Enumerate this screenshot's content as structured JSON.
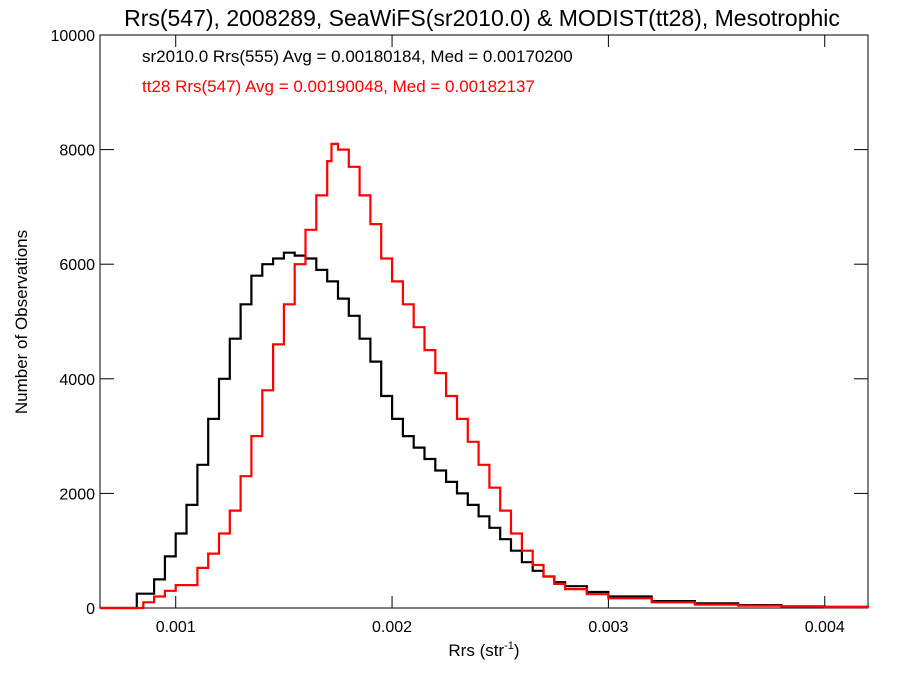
{
  "chart_data": {
    "type": "line",
    "title": "Rrs(547), 2008289, SeaWiFS(sr2010.0) & MODIST(tt28), Mesotrophic",
    "xlabel": "Rrs (str",
    "xlabel_sup": "-1",
    "xlabel_suffix": ")",
    "ylabel": "Number of Observations",
    "xlim": [
      0.00065,
      0.0042
    ],
    "ylim": [
      0,
      10000
    ],
    "x_ticks": [
      0.001,
      0.002,
      0.003,
      0.004
    ],
    "x_tick_labels": [
      "0.001",
      "0.002",
      "0.003",
      "0.004"
    ],
    "y_ticks": [
      0,
      2000,
      4000,
      6000,
      8000,
      10000
    ],
    "y_tick_labels": [
      "0",
      "2000",
      "4000",
      "6000",
      "8000",
      "10000"
    ],
    "grid": false,
    "legend_position": "top-left",
    "annotations": [
      {
        "text": "sr2010.0 Rrs(555) Avg = 0.00180184, Med = 0.00170200",
        "color": "#000000"
      },
      {
        "text": "tt28 Rrs(547) Avg = 0.00190048, Med = 0.00182137",
        "color": "#ff0000"
      }
    ],
    "series": [
      {
        "color": "#000000",
        "points": [
          [
            0.00065,
            0
          ],
          [
            0.00079,
            0
          ],
          [
            0.00082,
            250
          ],
          [
            0.0009,
            500
          ],
          [
            0.00095,
            900
          ],
          [
            0.001,
            1300
          ],
          [
            0.00105,
            1800
          ],
          [
            0.0011,
            2500
          ],
          [
            0.00115,
            3300
          ],
          [
            0.0012,
            4000
          ],
          [
            0.00125,
            4700
          ],
          [
            0.0013,
            5300
          ],
          [
            0.00135,
            5800
          ],
          [
            0.0014,
            6000
          ],
          [
            0.00145,
            6100
          ],
          [
            0.0015,
            6200
          ],
          [
            0.00155,
            6150
          ],
          [
            0.0016,
            6100
          ],
          [
            0.00165,
            5900
          ],
          [
            0.0017,
            5700
          ],
          [
            0.00175,
            5400
          ],
          [
            0.0018,
            5100
          ],
          [
            0.00185,
            4700
          ],
          [
            0.0019,
            4300
          ],
          [
            0.00195,
            3700
          ],
          [
            0.002,
            3300
          ],
          [
            0.00205,
            3000
          ],
          [
            0.0021,
            2800
          ],
          [
            0.00215,
            2600
          ],
          [
            0.0022,
            2400
          ],
          [
            0.00225,
            2200
          ],
          [
            0.0023,
            2000
          ],
          [
            0.00235,
            1800
          ],
          [
            0.0024,
            1600
          ],
          [
            0.00245,
            1400
          ],
          [
            0.0025,
            1200
          ],
          [
            0.00255,
            1000
          ],
          [
            0.0026,
            800
          ],
          [
            0.00265,
            650
          ],
          [
            0.0027,
            550
          ],
          [
            0.00275,
            450
          ],
          [
            0.0028,
            380
          ],
          [
            0.0029,
            280
          ],
          [
            0.003,
            200
          ],
          [
            0.0032,
            120
          ],
          [
            0.0034,
            80
          ],
          [
            0.0036,
            50
          ],
          [
            0.0038,
            30
          ],
          [
            0.004,
            20
          ],
          [
            0.0042,
            15
          ]
        ]
      },
      {
        "color": "#ff0000",
        "points": [
          [
            0.00065,
            0
          ],
          [
            0.0008,
            0
          ],
          [
            0.00085,
            100
          ],
          [
            0.0009,
            200
          ],
          [
            0.00095,
            300
          ],
          [
            0.001,
            400
          ],
          [
            0.0011,
            700
          ],
          [
            0.00115,
            950
          ],
          [
            0.0012,
            1300
          ],
          [
            0.00125,
            1700
          ],
          [
            0.0013,
            2300
          ],
          [
            0.00135,
            3000
          ],
          [
            0.0014,
            3800
          ],
          [
            0.00145,
            4600
          ],
          [
            0.0015,
            5300
          ],
          [
            0.00155,
            6000
          ],
          [
            0.0016,
            6600
          ],
          [
            0.00165,
            7200
          ],
          [
            0.0017,
            7800
          ],
          [
            0.00172,
            8100
          ],
          [
            0.00175,
            8000
          ],
          [
            0.0018,
            7700
          ],
          [
            0.00185,
            7200
          ],
          [
            0.0019,
            6700
          ],
          [
            0.00195,
            6100
          ],
          [
            0.002,
            5700
          ],
          [
            0.00205,
            5300
          ],
          [
            0.0021,
            4900
          ],
          [
            0.00215,
            4500
          ],
          [
            0.0022,
            4100
          ],
          [
            0.00225,
            3700
          ],
          [
            0.0023,
            3300
          ],
          [
            0.00235,
            2900
          ],
          [
            0.0024,
            2500
          ],
          [
            0.00245,
            2100
          ],
          [
            0.0025,
            1700
          ],
          [
            0.00255,
            1300
          ],
          [
            0.0026,
            1000
          ],
          [
            0.00265,
            750
          ],
          [
            0.0027,
            550
          ],
          [
            0.00275,
            420
          ],
          [
            0.0028,
            330
          ],
          [
            0.0029,
            240
          ],
          [
            0.003,
            170
          ],
          [
            0.0032,
            100
          ],
          [
            0.0034,
            60
          ],
          [
            0.0036,
            40
          ],
          [
            0.0038,
            25
          ],
          [
            0.004,
            15
          ],
          [
            0.0042,
            10
          ]
        ]
      }
    ]
  }
}
